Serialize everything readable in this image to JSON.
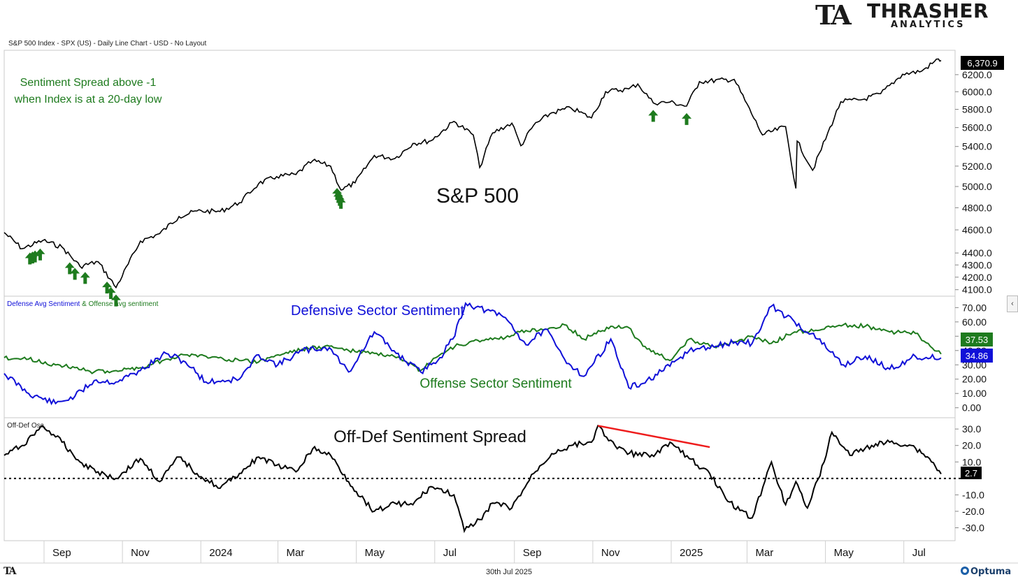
{
  "brand": {
    "logo_mark": "TA",
    "logo_name": "THRASHER",
    "logo_sub": "ANALYTICS",
    "footer_mark": "TA",
    "footer_vendor": "Optuma"
  },
  "header": {
    "chart_info": "S&P 500 Index - SPX (US) - Daily Line Chart - USD - No Layout"
  },
  "footer": {
    "date": "30th Jul 2025"
  },
  "ui": {
    "collapse_icon": "chevron-left-icon",
    "collapse_glyph": "‹"
  },
  "colors": {
    "price_line": "#000000",
    "defensive": "#1010d8",
    "offense": "#1e7b1e",
    "spread": "#000000",
    "trendline": "#ee1c1c",
    "arrow": "#1e7b1e",
    "panel_border": "#c8c8c8"
  },
  "chart_data": [
    {
      "type": "line",
      "title": "S&P 500",
      "annotation": "Sentiment Spread above -1\nwhen Index is at a 20-day low",
      "last_value_label": "6,370.9",
      "y_ticks": [
        4100.0,
        4200.0,
        4300.0,
        4400.0,
        4600.0,
        4800.0,
        5000.0,
        5200.0,
        5400.0,
        5600.0,
        5800.0,
        6000.0,
        6200.0
      ],
      "y_tick_labels": [
        "4100.0",
        "4200.0",
        "4300.0",
        "4400.0",
        "4600.0",
        "4800.0",
        "5000.0",
        "5200.0",
        "5400.0",
        "5600.0",
        "5800.0",
        "6000.0",
        "6200.0"
      ],
      "y_scale": "log",
      "ylim": [
        4060,
        6480
      ],
      "x": [
        "2023-08-01",
        "2023-08-15",
        "2023-08-31",
        "2023-09-15",
        "2023-09-29",
        "2023-10-13",
        "2023-10-27",
        "2023-11-15",
        "2023-11-30",
        "2023-12-15",
        "2023-12-29",
        "2024-01-16",
        "2024-01-31",
        "2024-02-15",
        "2024-02-29",
        "2024-03-15",
        "2024-03-28",
        "2024-04-11",
        "2024-04-19",
        "2024-04-30",
        "2024-05-15",
        "2024-05-31",
        "2024-06-14",
        "2024-06-28",
        "2024-07-16",
        "2024-07-31",
        "2024-08-05",
        "2024-08-15",
        "2024-08-30",
        "2024-09-06",
        "2024-09-16",
        "2024-09-30",
        "2024-10-15",
        "2024-10-31",
        "2024-11-11",
        "2024-11-29",
        "2024-12-06",
        "2024-12-18",
        "2024-12-31",
        "2025-01-13",
        "2025-01-23",
        "2025-02-19",
        "2025-03-13",
        "2025-03-31",
        "2025-04-08",
        "2025-04-09",
        "2025-04-21",
        "2025-05-13",
        "2025-05-30",
        "2025-06-13",
        "2025-06-30",
        "2025-07-15",
        "2025-07-28",
        "2025-07-30"
      ],
      "values": [
        4576,
        4437,
        4507,
        4450,
        4288,
        4327,
        4117,
        4502,
        4567,
        4719,
        4770,
        4766,
        4846,
        5029,
        5096,
        5117,
        5254,
        5199,
        4967,
        5035,
        5308,
        5277,
        5431,
        5460,
        5667,
        5522,
        5186,
        5543,
        5648,
        5408,
        5626,
        5762,
        5815,
        5705,
        6001,
        6032,
        6090,
        5872,
        5882,
        5836,
        6118,
        6144,
        5521,
        5611,
        4982,
        5456,
        5158,
        5886,
        5911,
        5977,
        6205,
        6243,
        6390,
        6370.9
      ],
      "markers": {
        "type": "up-arrow",
        "dates": [
          "2023-08-21",
          "2023-08-23",
          "2023-08-25",
          "2023-08-29",
          "2023-09-21",
          "2023-09-25",
          "2023-10-03",
          "2023-10-20",
          "2023-10-23",
          "2023-10-27",
          "2024-04-16",
          "2024-04-17",
          "2024-04-18",
          "2024-04-19",
          "2024-12-18",
          "2025-01-13"
        ]
      }
    },
    {
      "type": "line",
      "title_series_1": "Defense Avg Sentiment",
      "title_join": " & ",
      "title_series_2": "Offense avg sentiment",
      "annotations": [
        "Defensive Sector Sentiment",
        "Offense Sector Sentiment"
      ],
      "y_ticks": [
        0.0,
        10.0,
        20.0,
        30.0,
        40.0,
        50.0,
        60.0,
        70.0
      ],
      "y_tick_labels": [
        "0.00",
        "10.00",
        "20.00",
        "30.00",
        "40.00",
        "50.00",
        "60.00",
        "70.00"
      ],
      "ylim": [
        -6,
        77
      ],
      "series": [
        {
          "name": "Defense Avg Sentiment",
          "last_value_label": "34.86",
          "x": [
            "2023-08-01",
            "2023-08-20",
            "2023-09-10",
            "2023-09-25",
            "2023-10-10",
            "2023-10-27",
            "2023-11-15",
            "2023-12-05",
            "2023-12-20",
            "2024-01-05",
            "2024-01-31",
            "2024-02-15",
            "2024-03-01",
            "2024-03-20",
            "2024-04-10",
            "2024-04-25",
            "2024-05-15",
            "2024-06-01",
            "2024-06-20",
            "2024-07-05",
            "2024-07-15",
            "2024-07-25",
            "2024-08-10",
            "2024-08-25",
            "2024-09-10",
            "2024-09-25",
            "2024-10-10",
            "2024-10-25",
            "2024-11-15",
            "2024-11-29",
            "2024-12-10",
            "2024-12-31",
            "2025-01-15",
            "2025-02-05",
            "2025-02-20",
            "2025-03-05",
            "2025-03-20",
            "2025-04-07",
            "2025-04-25",
            "2025-05-15",
            "2025-06-01",
            "2025-06-20",
            "2025-07-10",
            "2025-07-30"
          ],
          "values": [
            24,
            10,
            3,
            8,
            19,
            18,
            26,
            38,
            32,
            18,
            20,
            37,
            30,
            40,
            42,
            25,
            53,
            38,
            25,
            35,
            48,
            73,
            68,
            63,
            44,
            55,
            34,
            22,
            48,
            14,
            17,
            29,
            40,
            43,
            46,
            45,
            71,
            60,
            48,
            30,
            36,
            27,
            36,
            34.86
          ]
        },
        {
          "name": "Offense avg sentiment",
          "last_value_label": "37.53",
          "x": [
            "2023-08-01",
            "2023-08-20",
            "2023-09-10",
            "2023-09-25",
            "2023-10-10",
            "2023-10-27",
            "2023-11-15",
            "2023-12-05",
            "2023-12-20",
            "2024-01-05",
            "2024-01-31",
            "2024-02-15",
            "2024-03-01",
            "2024-03-20",
            "2024-04-10",
            "2024-04-25",
            "2024-05-15",
            "2024-06-01",
            "2024-06-20",
            "2024-07-05",
            "2024-07-20",
            "2024-08-10",
            "2024-08-25",
            "2024-09-10",
            "2024-09-25",
            "2024-10-10",
            "2024-10-25",
            "2024-11-15",
            "2024-11-29",
            "2024-12-10",
            "2024-12-31",
            "2025-01-15",
            "2025-02-05",
            "2025-02-20",
            "2025-03-05",
            "2025-03-20",
            "2025-04-07",
            "2025-04-25",
            "2025-05-15",
            "2025-06-01",
            "2025-06-20",
            "2025-07-10",
            "2025-07-30"
          ],
          "values": [
            35,
            34,
            30,
            28,
            25,
            26,
            28,
            34,
            37,
            36,
            33,
            32,
            37,
            41,
            43,
            40,
            38,
            35,
            26,
            37,
            44,
            48,
            49,
            54,
            55,
            58,
            48,
            57,
            56,
            43,
            33,
            48,
            42,
            46,
            50,
            45,
            53,
            54,
            58,
            57,
            53,
            52,
            37.53
          ]
        }
      ]
    },
    {
      "type": "line",
      "title": "Off-Def Osc.",
      "annotation": "Off-Def Sentiment Spread",
      "last_value_label": "2.7",
      "y_ticks": [
        -30.0,
        -20.0,
        -10.0,
        10.0,
        20.0,
        30.0
      ],
      "y_tick_labels": [
        "-30.0",
        "-20.0",
        "-10.0",
        "10.0",
        "20.0",
        "30.0"
      ],
      "zero_line": true,
      "ylim": [
        -37,
        36
      ],
      "x": [
        "2023-08-01",
        "2023-08-15",
        "2023-08-31",
        "2023-09-15",
        "2023-09-29",
        "2023-10-13",
        "2023-10-27",
        "2023-11-15",
        "2023-11-30",
        "2023-12-15",
        "2023-12-29",
        "2024-01-16",
        "2024-01-31",
        "2024-02-15",
        "2024-02-29",
        "2024-03-15",
        "2024-03-28",
        "2024-04-11",
        "2024-04-25",
        "2024-05-01",
        "2024-05-15",
        "2024-05-31",
        "2024-06-14",
        "2024-06-28",
        "2024-07-16",
        "2024-07-24",
        "2024-08-05",
        "2024-08-15",
        "2024-08-30",
        "2024-09-16",
        "2024-09-30",
        "2024-10-15",
        "2024-10-31",
        "2024-11-05",
        "2024-11-20",
        "2024-12-06",
        "2024-12-20",
        "2024-12-31",
        "2025-01-15",
        "2025-01-31",
        "2025-02-14",
        "2025-03-05",
        "2025-03-20",
        "2025-03-31",
        "2025-04-08",
        "2025-04-17",
        "2025-04-30",
        "2025-05-06",
        "2025-05-20",
        "2025-06-06",
        "2025-06-20",
        "2025-07-07",
        "2025-07-21",
        "2025-07-30"
      ],
      "values": [
        14,
        20,
        32,
        22,
        10,
        4,
        0,
        12,
        -2,
        13,
        3,
        -6,
        3,
        13,
        8,
        4,
        18,
        14,
        -2,
        -8,
        -20,
        -15,
        -16,
        -5,
        -10,
        -32,
        -25,
        -15,
        -18,
        3,
        15,
        20,
        22,
        32,
        18,
        14,
        15,
        22,
        12,
        3,
        -14,
        -24,
        10,
        -16,
        -2,
        -18,
        10,
        28,
        14,
        20,
        22,
        20,
        12,
        2.7
      ],
      "trendline": {
        "x": [
          "2024-11-05",
          "2025-01-31"
        ],
        "values": [
          32,
          19
        ]
      }
    }
  ],
  "x_axis": {
    "tick_dates": [
      "2023-09-01",
      "2023-11-01",
      "2024-01-01",
      "2024-03-01",
      "2024-05-01",
      "2024-07-01",
      "2024-09-01",
      "2024-11-01",
      "2025-01-01",
      "2025-03-01",
      "2025-05-01",
      "2025-07-01"
    ],
    "tick_labels": [
      "Sep",
      "Nov",
      "2024",
      "Mar",
      "May",
      "Jul",
      "Sep",
      "Nov",
      "2025",
      "Mar",
      "May",
      "Jul"
    ]
  }
}
